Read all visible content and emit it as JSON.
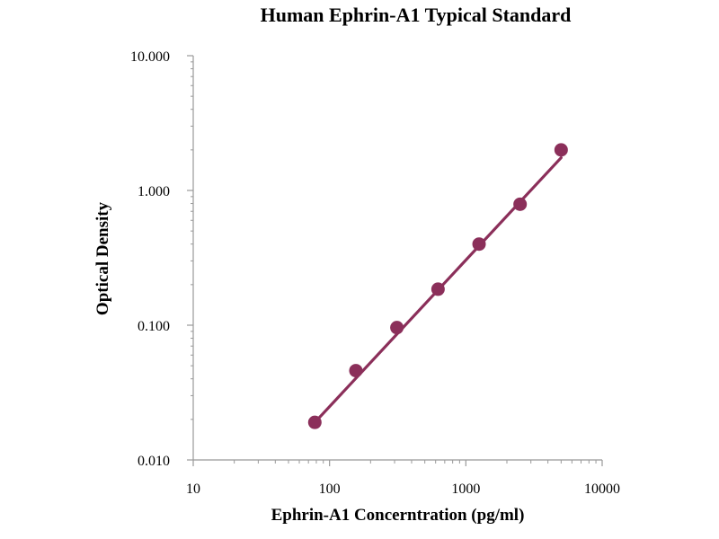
{
  "chart_data": {
    "type": "scatter",
    "title": "Human Ephrin-A1 Typical Standard",
    "xlabel": "Ephrin-A1 Concerntration (pg/ml)",
    "ylabel": "Optical Density",
    "xscale": "log",
    "yscale": "log",
    "xlim": [
      10,
      10000
    ],
    "ylim": [
      0.01,
      10
    ],
    "xticks": [
      "10",
      "100",
      "1000",
      "10000"
    ],
    "yticks": [
      "10.000",
      "1.000",
      "0.100",
      "0.010"
    ],
    "grid": false,
    "legend": "none",
    "series": [
      {
        "x": [
          78,
          156,
          312,
          625,
          1250,
          2500,
          5000
        ],
        "y": [
          0.019,
          0.046,
          0.096,
          0.185,
          0.4,
          0.79,
          2.0
        ]
      }
    ],
    "fit_line": {
      "x": [
        78,
        5000
      ],
      "y": [
        0.019,
        1.75
      ]
    },
    "colors": {
      "series": "#8b2f5a",
      "axis": "#999999"
    }
  }
}
